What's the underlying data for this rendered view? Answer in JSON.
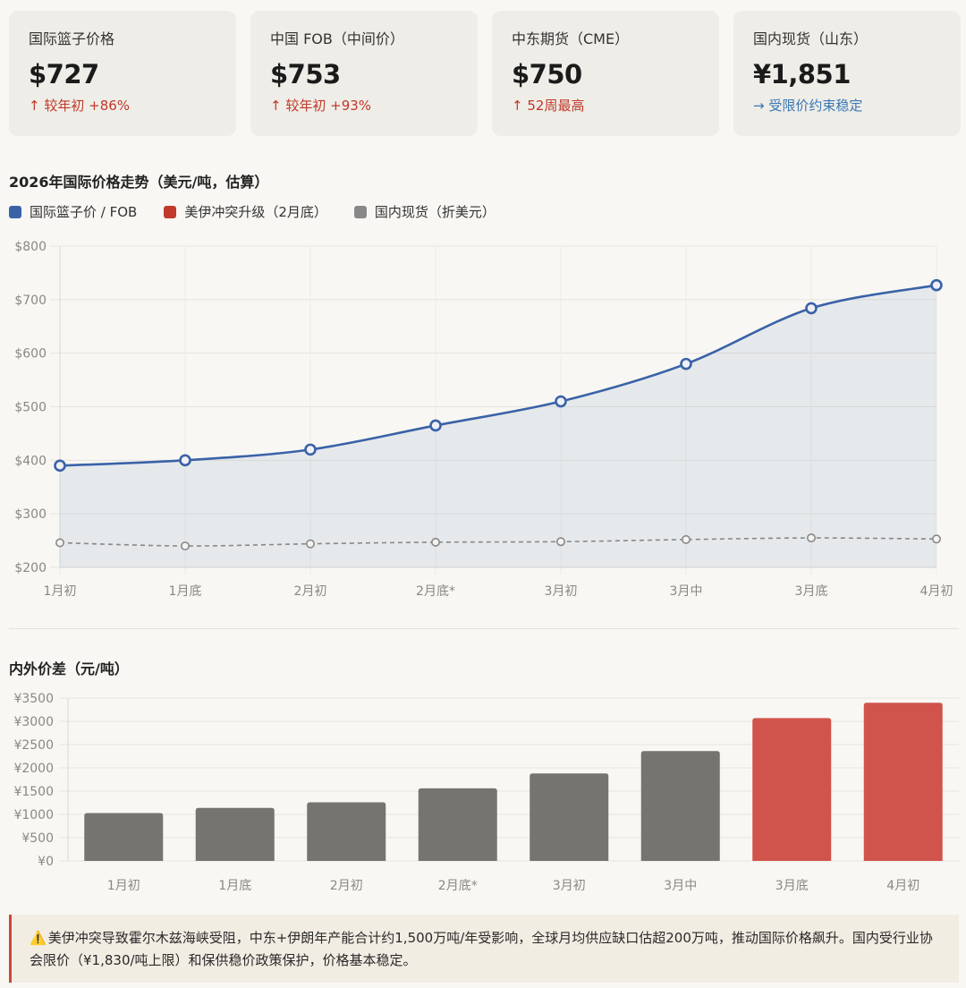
{
  "cards": [
    {
      "label": "国际篮子价格",
      "value": "$727",
      "arrow": "↑",
      "change": "较年初 +86%",
      "tone": "up"
    },
    {
      "label": "中国 FOB（中间价）",
      "value": "$753",
      "arrow": "↑",
      "change": "较年初 +93%",
      "tone": "up"
    },
    {
      "label": "中东期货（CME）",
      "value": "$750",
      "arrow": "↑",
      "change": "52周最高",
      "tone": "up"
    },
    {
      "label": "国内现货（山东）",
      "value": "¥1,851",
      "arrow": "→",
      "change": "受限价约束稳定",
      "tone": "flat"
    }
  ],
  "chart1_title": "2026年国际价格走势（美元/吨，估算）",
  "chart2_title": "内外价差（元/吨）",
  "legend": [
    {
      "label": "国际篮子价 / FOB",
      "color": "#3a62a7"
    },
    {
      "label": "美伊冲突升级（2月底）",
      "color": "#c0392b"
    },
    {
      "label": "国内现货（折美元）",
      "color": "#888888"
    }
  ],
  "colors": {
    "line_intl": "#3a62a7",
    "line_domestic": "#888888",
    "bar_normal": "#767470",
    "bar_conflict": "#d0544c"
  },
  "note": {
    "icon": "warning-icon",
    "text": "美伊冲突导致霍尔木兹海峡受阻，中东+伊朗年产能合计约1,500万吨/年受影响，全球月均供应缺口估超200万吨，推动国际价格飙升。国内受行业协会限价（¥1,830/吨上限）和保供稳价政策保护，价格基本稳定。"
  },
  "chart_data": [
    {
      "type": "line",
      "title": "2026年国际价格走势（美元/吨，估算）",
      "categories": [
        "1月初",
        "1月底",
        "2月初",
        "2月底*",
        "3月初",
        "3月中",
        "3月底",
        "4月初"
      ],
      "ylim": [
        200,
        800
      ],
      "yticks": [
        "$200",
        "$300",
        "$400",
        "$500",
        "$600",
        "$700",
        "$800"
      ],
      "series": [
        {
          "name": "国际篮子价 / FOB",
          "values": [
            390,
            400,
            420,
            465,
            510,
            580,
            684,
            727
          ]
        },
        {
          "name": "国内现货（折美元）",
          "values": [
            246,
            240,
            244,
            247,
            248,
            252,
            255,
            253
          ]
        }
      ],
      "grid": true,
      "legend_position": "top-left"
    },
    {
      "type": "bar",
      "title": "内外价差（元/吨）",
      "categories": [
        "1月初",
        "1月底",
        "2月初",
        "2月底*",
        "3月初",
        "3月中",
        "3月底",
        "4月初"
      ],
      "values": [
        1030,
        1140,
        1260,
        1560,
        1880,
        2360,
        3070,
        3400
      ],
      "highlight": [
        false,
        false,
        false,
        false,
        false,
        false,
        true,
        true
      ],
      "ylim": [
        0,
        3500
      ],
      "yticks": [
        "¥0",
        "¥500",
        "¥1000",
        "¥1500",
        "¥2000",
        "¥2500",
        "¥3000",
        "¥3500"
      ],
      "grid": true
    }
  ]
}
